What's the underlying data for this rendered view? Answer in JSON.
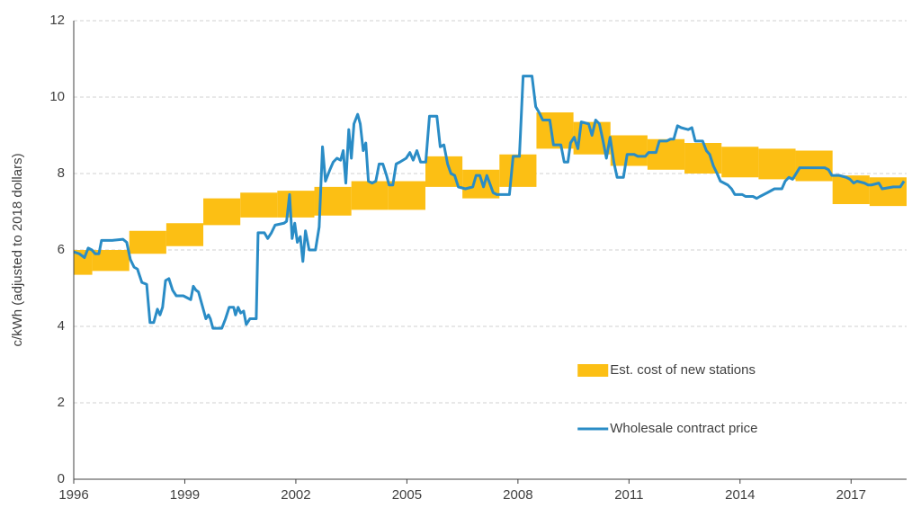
{
  "chart_data": {
    "type": "line",
    "y_label": "c/kWh (adjusted to 2018 dollars)",
    "xlim": [
      1996,
      2018.5
    ],
    "xticks": [
      1996,
      1999,
      2002,
      2005,
      2008,
      2011,
      2014,
      2017
    ],
    "ylim": [
      0,
      12
    ],
    "yticks": [
      0,
      2,
      4,
      6,
      8,
      10,
      12
    ],
    "grid": true,
    "legend_position": "lower right",
    "series": [
      {
        "name": "Est. cost of new stations",
        "type": "band",
        "color": "#fcbf14",
        "bins": [
          1996,
          1996.5,
          1997.5,
          1998.5,
          1999.5,
          2000.5,
          2001.5,
          2002.5,
          2003.5,
          2004.5,
          2005.5,
          2006.5,
          2007.5,
          2008.5,
          2009.5,
          2010.5,
          2011.5,
          2012.5,
          2013.5,
          2014.5,
          2015.5,
          2016.5,
          2017.5,
          2018.5
        ],
        "low": [
          5.35,
          5.45,
          5.9,
          6.1,
          6.65,
          6.85,
          6.85,
          6.9,
          7.05,
          7.05,
          7.65,
          7.35,
          7.65,
          8.65,
          8.5,
          8.2,
          8.1,
          8.0,
          7.9,
          7.85,
          7.8,
          7.2,
          7.15
        ],
        "high": [
          6.0,
          6.0,
          6.5,
          6.7,
          7.35,
          7.5,
          7.55,
          7.65,
          7.8,
          7.8,
          8.45,
          8.1,
          8.5,
          9.6,
          9.35,
          9.0,
          8.9,
          8.8,
          8.7,
          8.65,
          8.6,
          7.95,
          7.9
        ]
      },
      {
        "name": "Wholesale contract price",
        "type": "line",
        "color": "#2a8cc6",
        "x": [
          1996.0,
          1996.15,
          1996.29,
          1996.39,
          1996.49,
          1996.58,
          1996.68,
          1996.75,
          1997.04,
          1997.33,
          1997.43,
          1997.53,
          1997.63,
          1997.72,
          1997.84,
          1997.97,
          1998.06,
          1998.16,
          1998.26,
          1998.33,
          1998.4,
          1998.48,
          1998.57,
          1998.67,
          1998.77,
          1998.96,
          1999.06,
          1999.16,
          1999.23,
          1999.3,
          1999.37,
          1999.47,
          1999.57,
          1999.64,
          1999.69,
          1999.76,
          2000.0,
          2000.1,
          2000.2,
          2000.32,
          2000.37,
          2000.44,
          2000.51,
          2000.59,
          2000.66,
          2000.76,
          2000.93,
          2000.98,
          2001.15,
          2001.24,
          2001.34,
          2001.44,
          2001.68,
          2001.75,
          2001.83,
          2001.9,
          2001.97,
          2002.04,
          2002.12,
          2002.19,
          2002.26,
          2002.36,
          2002.53,
          2002.63,
          2002.72,
          2002.8,
          2002.92,
          2003.01,
          2003.11,
          2003.21,
          2003.28,
          2003.35,
          2003.43,
          2003.5,
          2003.57,
          2003.67,
          2003.74,
          2003.82,
          2003.89,
          2003.96,
          2004.06,
          2004.16,
          2004.25,
          2004.35,
          2004.45,
          2004.52,
          2004.62,
          2004.71,
          2004.81,
          2004.98,
          2005.08,
          2005.17,
          2005.27,
          2005.37,
          2005.51,
          2005.61,
          2005.81,
          2005.9,
          2006.0,
          2006.1,
          2006.19,
          2006.29,
          2006.39,
          2006.58,
          2006.78,
          2006.87,
          2006.97,
          2007.07,
          2007.16,
          2007.33,
          2007.43,
          2007.77,
          2007.87,
          2008.04,
          2008.14,
          2008.38,
          2008.48,
          2008.57,
          2008.67,
          2008.86,
          2008.96,
          2009.16,
          2009.25,
          2009.35,
          2009.42,
          2009.52,
          2009.62,
          2009.71,
          2009.91,
          2010.0,
          2010.1,
          2010.2,
          2010.3,
          2010.39,
          2010.49,
          2010.59,
          2010.68,
          2010.85,
          2010.95,
          2011.14,
          2011.24,
          2011.44,
          2011.53,
          2011.73,
          2011.82,
          2012.02,
          2012.12,
          2012.21,
          2012.31,
          2012.41,
          2012.6,
          2012.7,
          2012.79,
          2012.99,
          2013.09,
          2013.18,
          2013.28,
          2013.38,
          2013.47,
          2013.67,
          2013.77,
          2013.86,
          2014.06,
          2014.15,
          2014.35,
          2014.45,
          2014.54,
          2014.74,
          2014.93,
          2015.13,
          2015.22,
          2015.32,
          2015.42,
          2015.61,
          2016.29,
          2016.39,
          2016.48,
          2016.68,
          2016.87,
          2016.97,
          2017.07,
          2017.16,
          2017.36,
          2017.46,
          2017.55,
          2017.75,
          2017.84,
          2018.14,
          2018.33,
          2018.43
        ],
        "values": [
          5.95,
          5.9,
          5.8,
          6.05,
          6.0,
          5.9,
          5.9,
          6.25,
          6.25,
          6.28,
          6.2,
          5.75,
          5.55,
          5.5,
          5.15,
          5.1,
          4.1,
          4.1,
          4.45,
          4.3,
          4.5,
          5.2,
          5.25,
          4.95,
          4.8,
          4.8,
          4.75,
          4.7,
          5.05,
          4.95,
          4.9,
          4.55,
          4.2,
          4.3,
          4.2,
          3.95,
          3.95,
          4.2,
          4.5,
          4.5,
          4.3,
          4.5,
          4.35,
          4.4,
          4.05,
          4.2,
          4.2,
          6.45,
          6.45,
          6.3,
          6.45,
          6.65,
          6.7,
          6.75,
          7.45,
          6.3,
          6.7,
          6.2,
          6.35,
          5.7,
          6.5,
          6.0,
          6.0,
          6.6,
          8.7,
          7.8,
          8.1,
          8.3,
          8.4,
          8.35,
          8.6,
          7.75,
          9.15,
          8.4,
          9.3,
          9.55,
          9.3,
          8.6,
          8.8,
          7.8,
          7.75,
          7.8,
          8.25,
          8.25,
          7.95,
          7.7,
          7.7,
          8.25,
          8.3,
          8.4,
          8.55,
          8.35,
          8.6,
          8.3,
          8.3,
          9.5,
          9.5,
          8.7,
          8.75,
          8.25,
          8.0,
          7.95,
          7.65,
          7.6,
          7.65,
          7.95,
          7.95,
          7.65,
          7.95,
          7.5,
          7.45,
          7.45,
          8.45,
          8.45,
          10.55,
          10.55,
          9.75,
          9.6,
          9.4,
          9.4,
          8.75,
          8.75,
          8.3,
          8.3,
          8.8,
          8.95,
          8.65,
          9.35,
          9.3,
          9.0,
          9.4,
          9.3,
          8.85,
          8.4,
          8.95,
          8.3,
          7.9,
          7.9,
          8.5,
          8.5,
          8.45,
          8.45,
          8.55,
          8.55,
          8.85,
          8.85,
          8.9,
          8.9,
          9.25,
          9.2,
          9.15,
          9.2,
          8.85,
          8.85,
          8.6,
          8.5,
          8.2,
          8.0,
          7.8,
          7.7,
          7.6,
          7.45,
          7.45,
          7.4,
          7.4,
          7.35,
          7.4,
          7.5,
          7.6,
          7.6,
          7.8,
          7.9,
          7.85,
          8.15,
          8.15,
          8.1,
          7.95,
          7.95,
          7.9,
          7.85,
          7.75,
          7.8,
          7.75,
          7.7,
          7.7,
          7.75,
          7.6,
          7.65,
          7.65,
          7.8
        ]
      }
    ]
  }
}
